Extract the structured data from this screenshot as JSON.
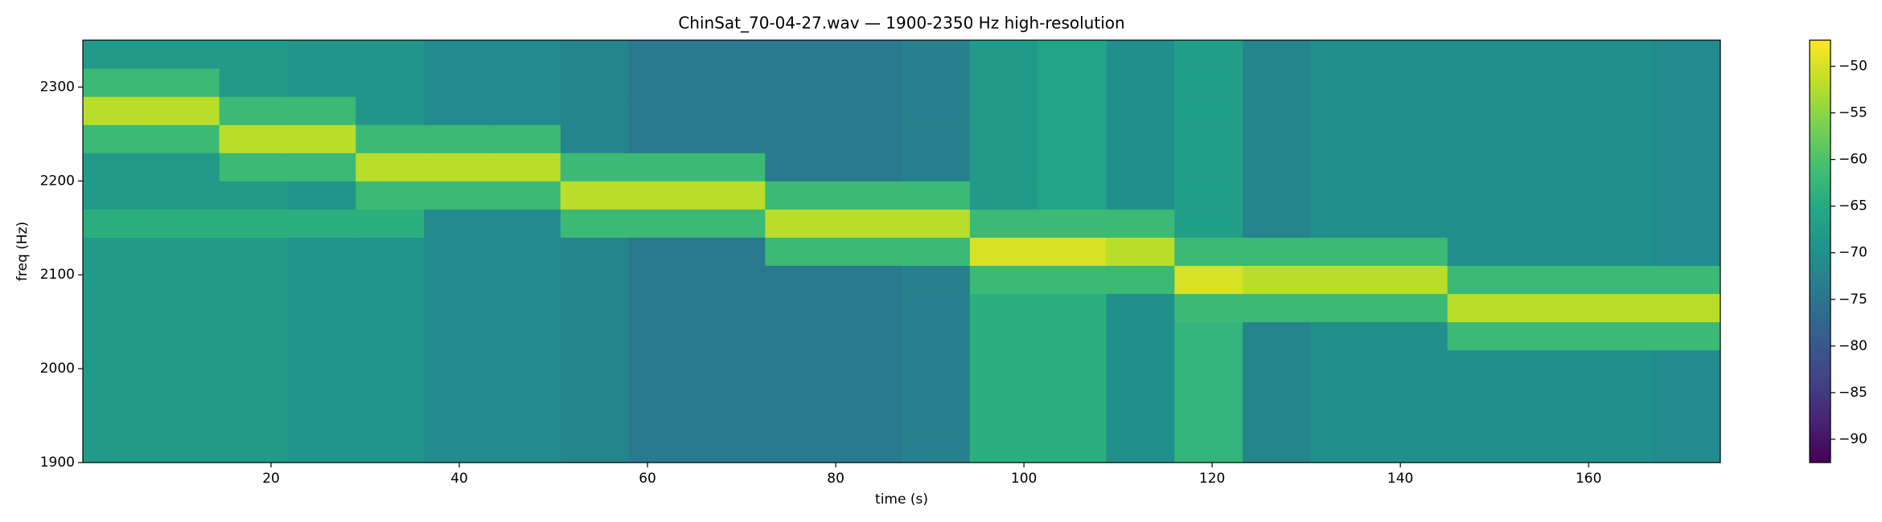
{
  "chart_data": {
    "type": "spectrogram",
    "title": "ChinSat_70-04-27.wav — 1900-2350 Hz high-resolution",
    "xlabel": "time (s)",
    "ylabel": "freq (Hz)",
    "xlim": [
      0,
      174
    ],
    "xticks": [
      20,
      40,
      60,
      80,
      100,
      120,
      140,
      160
    ],
    "ylim": [
      1900,
      2350
    ],
    "yticks": [
      1900,
      2000,
      2100,
      2200,
      2300
    ],
    "xbins": [
      0,
      7.25,
      14.5,
      21.75,
      29,
      36.25,
      43.5,
      50.75,
      58,
      65.25,
      72.5,
      79.75,
      87,
      94.25,
      101.5,
      108.75,
      116,
      123.25,
      130.5,
      137.75,
      145,
      152.25,
      159.5,
      166.75,
      174
    ],
    "ybins": [
      1900,
      1930,
      1960,
      1990,
      2020,
      2050,
      2080,
      2110,
      2140,
      2170,
      2200,
      2230,
      2260,
      2290,
      2320,
      2350
    ],
    "colormap": "viridis",
    "clim": [
      -92.5,
      -47.2
    ],
    "cticks": [
      {
        "value": -90,
        "label": "−90"
      },
      {
        "value": -85,
        "label": "−85"
      },
      {
        "value": -80,
        "label": "−80"
      },
      {
        "value": -75,
        "label": "−75"
      },
      {
        "value": -70,
        "label": "−70"
      },
      {
        "value": -65,
        "label": "−65"
      },
      {
        "value": -60,
        "label": "−60"
      },
      {
        "value": -55,
        "label": "−55"
      },
      {
        "value": -50,
        "label": "−50"
      }
    ],
    "values": [
      [
        -68,
        -68,
        -68,
        -69,
        -69,
        -71,
        -71,
        -72,
        -74,
        -74,
        -74,
        -74,
        -73,
        -64,
        -64,
        -70,
        -63,
        -72,
        -70,
        -70,
        -70,
        -70,
        -70,
        -71
      ],
      [
        -68,
        -68,
        -68,
        -69,
        -69,
        -71,
        -71,
        -72,
        -74,
        -74,
        -74,
        -74,
        -73,
        -64,
        -64,
        -70,
        -63,
        -72,
        -70,
        -70,
        -70,
        -70,
        -70,
        -71
      ],
      [
        -68,
        -68,
        -68,
        -69,
        -69,
        -71,
        -71,
        -72,
        -74,
        -74,
        -74,
        -74,
        -73,
        -64,
        -64,
        -70,
        -63,
        -72,
        -70,
        -70,
        -70,
        -70,
        -70,
        -71
      ],
      [
        -68,
        -68,
        -68,
        -69,
        -69,
        -71,
        -71,
        -72,
        -74,
        -74,
        -74,
        -74,
        -73,
        -64,
        -64,
        -70,
        -63,
        -72,
        -70,
        -70,
        -70,
        -70,
        -70,
        -71
      ],
      [
        -68,
        -68,
        -68,
        -69,
        -69,
        -71,
        -71,
        -72,
        -74,
        -74,
        -74,
        -74,
        -73,
        -64,
        -64,
        -70,
        -63,
        -72,
        -70,
        -70,
        -62,
        -62,
        -62,
        -62
      ],
      [
        -68,
        -68,
        -68,
        -69,
        -69,
        -71,
        -71,
        -72,
        -74,
        -74,
        -74,
        -74,
        -73,
        -64,
        -64,
        -70,
        -62,
        -62,
        -62,
        -62,
        -52,
        -52,
        -52,
        -52
      ],
      [
        -68,
        -68,
        -68,
        -69,
        -69,
        -71,
        -71,
        -72,
        -74,
        -74,
        -74,
        -74,
        -73,
        -62,
        -62,
        -62,
        -50,
        -52,
        -52,
        -52,
        -62,
        -62,
        -62,
        -62
      ],
      [
        -68,
        -68,
        -68,
        -69,
        -69,
        -71,
        -71,
        -72,
        -74,
        -74,
        -62,
        -62,
        -62,
        -50,
        -50,
        -52,
        -62,
        -62,
        -62,
        -62,
        -70,
        -70,
        -70,
        -71
      ],
      [
        -64,
        -64,
        -64,
        -64,
        -64,
        -71,
        -71,
        -62,
        -62,
        -62,
        -52,
        -52,
        -52,
        -62,
        -62,
        -62,
        -67,
        -72,
        -70,
        -70,
        -70,
        -70,
        -70,
        -71
      ],
      [
        -68,
        -68,
        -68,
        -69,
        -62,
        -62,
        -62,
        -52,
        -52,
        -52,
        -62,
        -62,
        -62,
        -68,
        -66,
        -70,
        -67,
        -72,
        -70,
        -70,
        -70,
        -70,
        -70,
        -71
      ],
      [
        -68,
        -68,
        -62,
        -62,
        -52,
        -52,
        -52,
        -62,
        -62,
        -62,
        -74,
        -74,
        -73,
        -68,
        -66,
        -70,
        -67,
        -72,
        -70,
        -70,
        -70,
        -70,
        -70,
        -71
      ],
      [
        -62,
        -62,
        -52,
        -52,
        -62,
        -62,
        -62,
        -72,
        -74,
        -74,
        -74,
        -74,
        -73,
        -68,
        -66,
        -70,
        -67,
        -72,
        -70,
        -70,
        -70,
        -70,
        -70,
        -71
      ],
      [
        -52,
        -52,
        -62,
        -62,
        -69,
        -71,
        -71,
        -72,
        -74,
        -74,
        -74,
        -74,
        -73,
        -68,
        -66,
        -70,
        -67,
        -72,
        -70,
        -70,
        -70,
        -70,
        -70,
        -71
      ],
      [
        -62,
        -62,
        -68,
        -69,
        -69,
        -71,
        -71,
        -72,
        -74,
        -74,
        -74,
        -74,
        -73,
        -68,
        -66,
        -70,
        -67,
        -72,
        -70,
        -70,
        -70,
        -70,
        -70,
        -71
      ],
      [
        -68,
        -68,
        -68,
        -69,
        -69,
        -71,
        -71,
        -72,
        -74,
        -74,
        -74,
        -74,
        -73,
        -68,
        -66,
        -70,
        -67,
        -72,
        -70,
        -70,
        -70,
        -70,
        -70,
        -71
      ]
    ]
  }
}
